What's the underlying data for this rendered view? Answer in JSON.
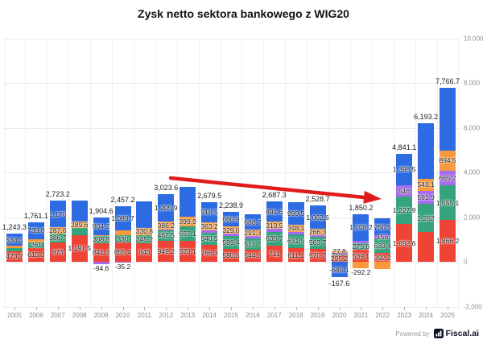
{
  "title": "Zysk netto sektora bankowego z WIG20",
  "footer": {
    "powered_by": "Powered by",
    "brand": "Fiscal.ai"
  },
  "colors": {
    "blue": "#2d6be3",
    "orange": "#f8993d",
    "purple": "#a769f0",
    "green": "#35a47c",
    "red": "#ee4335",
    "arrow": "#e01b1b",
    "icon_bg": "#0c1222"
  },
  "chart_data": {
    "type": "bar",
    "stacked": true,
    "title": "Zysk netto sektora bankowego z WIG20",
    "xlabel": "",
    "ylabel": "",
    "ylim": [
      -2000,
      10000
    ],
    "grid": true,
    "legend": "none",
    "unlabeled_segments_estimated_from_pixels": true,
    "y_axis": {
      "values": [
        10000,
        8000,
        6000,
        4000,
        2000,
        0,
        -2000
      ],
      "labels": [
        "10,000",
        "8,000",
        "6,000",
        "4,000",
        "2,000",
        "0",
        "-2,000"
      ]
    },
    "categories": [
      "2005",
      "2006",
      "2007",
      "2008",
      "2009",
      "2010",
      "2011",
      "2012",
      "2013",
      "2014",
      "2015",
      "2016",
      "2017",
      "2018",
      "2019",
      "2020",
      "2021",
      "2022",
      "2023",
      "2024",
      "2025"
    ],
    "series_order_top_to_bottom": [
      "blue",
      "orange",
      "purple",
      "green",
      "red"
    ],
    "annotation": {
      "type": "arrow",
      "from": "above 2013 bar",
      "to": "top of 2022 bar"
    },
    "bars": [
      {
        "year": "2005",
        "total_label": "1,243.3",
        "segments": [
          {
            "c": "blue",
            "v": 534.4,
            "label": "534.4"
          },
          {
            "c": "orange",
            "v": 90
          },
          {
            "c": "green",
            "v": 145.2
          },
          {
            "c": "red",
            "v": 473.7,
            "label": "473.7"
          }
        ]
      },
      {
        "year": "2006",
        "total_label": "1,761.1",
        "segments": [
          {
            "c": "blue",
            "v": 739.8,
            "label": "739.8"
          },
          {
            "c": "orange",
            "v": 145
          },
          {
            "c": "green",
            "v": 261,
            "label": "261"
          },
          {
            "c": "red",
            "v": 615.3,
            "label": "615.3"
          }
        ]
      },
      {
        "year": "2007",
        "total_label": "2,723.2",
        "segments": [
          {
            "c": "blue",
            "v": 1176,
            "label": "1,176"
          },
          {
            "c": "orange",
            "v": 287.6,
            "label": "287.6"
          },
          {
            "c": "green",
            "v": 386.7,
            "label": "386.7"
          },
          {
            "c": "red",
            "v": 873,
            "label": "873"
          }
        ]
      },
      {
        "year": "2008",
        "segments": [
          {
            "c": "blue",
            "v": 950
          },
          {
            "c": "orange",
            "v": 289.6,
            "label": "289.6"
          },
          {
            "c": "green",
            "v": 310
          },
          {
            "c": "red",
            "v": 1191.5,
            "label": "1,191.5"
          }
        ]
      },
      {
        "year": "2009",
        "total_label": "1,904.6",
        "segments": [
          {
            "c": "blue",
            "v": 804.2,
            "label": "804.2"
          },
          {
            "c": "orange",
            "v": 44.9
          },
          {
            "c": "green",
            "v": 308.8,
            "label": "308.8"
          },
          {
            "c": "red",
            "v": 841.3,
            "label": "841.3"
          },
          {
            "c": "purple",
            "v": -94.6,
            "label": "-94.6"
          }
        ]
      },
      {
        "year": "2010",
        "total_label": "2,457.2",
        "segments": [
          {
            "c": "blue",
            "v": 1089.7,
            "label": "1,089.7"
          },
          {
            "c": "orange",
            "v": 217.3
          },
          {
            "c": "green",
            "v": 330,
            "label": "330"
          },
          {
            "c": "red",
            "v": 855.4,
            "label": "855.4"
          },
          {
            "c": "purple",
            "v": -35.2,
            "label": "-35.2"
          }
        ]
      },
      {
        "year": "2011",
        "segments": [
          {
            "c": "blue",
            "v": 1180
          },
          {
            "c": "orange",
            "v": 330.8,
            "label": "330.8"
          },
          {
            "c": "green",
            "v": 345.2,
            "label": "345.2"
          },
          {
            "c": "red",
            "v": 845,
            "label": "845"
          }
        ]
      },
      {
        "year": "2012",
        "total_label": "3,023.6",
        "segments": [
          {
            "c": "blue",
            "v": 1205.9,
            "label": "1,205.9"
          },
          {
            "c": "orange",
            "v": 386.2,
            "label": "386.2"
          },
          {
            "c": "purple",
            "v": 19.8
          },
          {
            "c": "green",
            "v": 462.5,
            "label": "462.5"
          },
          {
            "c": "red",
            "v": 949.2,
            "label": "949.2"
          }
        ]
      },
      {
        "year": "2013",
        "segments": [
          {
            "c": "blue",
            "v": 1345
          },
          {
            "c": "orange",
            "v": 399.9,
            "label": "399.9"
          },
          {
            "c": "purple",
            "v": 20
          },
          {
            "c": "green",
            "v": 657.1,
            "label": "657.1"
          },
          {
            "c": "red",
            "v": 923.1,
            "label": "923.1"
          }
        ]
      },
      {
        "year": "2014",
        "total_label": "2,679.5",
        "segments": [
          {
            "c": "blue",
            "v": 918.5,
            "label": "918.5"
          },
          {
            "c": "orange",
            "v": 363.2,
            "label": "363.2"
          },
          {
            "c": "purple",
            "v": 91
          },
          {
            "c": "green",
            "v": 540.5,
            "label": "540.5"
          },
          {
            "c": "red",
            "v": 766.3,
            "label": "766.3"
          }
        ]
      },
      {
        "year": "2015",
        "total_label": "2,238.9",
        "segments": [
          {
            "c": "blue",
            "v": 660.9,
            "label": "660.9"
          },
          {
            "c": "orange",
            "v": 329.6,
            "label": "329.6"
          },
          {
            "c": "purple",
            "v": 78.4
          },
          {
            "c": "green",
            "v": 589.4,
            "label": "589.4"
          },
          {
            "c": "red",
            "v": 580.6,
            "label": "580.6"
          }
        ]
      },
      {
        "year": "2016",
        "segments": [
          {
            "c": "blue",
            "v": 686.7,
            "label": "686.7"
          },
          {
            "c": "orange",
            "v": 291.3,
            "label": "291.3"
          },
          {
            "c": "purple",
            "v": 75
          },
          {
            "c": "green",
            "v": 517.7,
            "label": "517.7"
          },
          {
            "c": "red",
            "v": 544.6,
            "label": "544.6"
          }
        ]
      },
      {
        "year": "2017",
        "total_label": "2,687.3",
        "segments": [
          {
            "c": "blue",
            "v": 891.6,
            "label": "891.6"
          },
          {
            "c": "orange",
            "v": 313.5,
            "label": "313.5"
          },
          {
            "c": "purple",
            "v": 135.5
          },
          {
            "c": "green",
            "v": 635.7,
            "label": "635.7"
          },
          {
            "c": "red",
            "v": 711,
            "label": "711"
          }
        ]
      },
      {
        "year": "2018",
        "segments": [
          {
            "c": "blue",
            "v": 999.5,
            "label": "999.5"
          },
          {
            "c": "orange",
            "v": 348.1,
            "label": "348.1"
          },
          {
            "c": "purple",
            "v": 80
          },
          {
            "c": "green",
            "v": 631.5,
            "label": "631.5"
          },
          {
            "c": "red",
            "v": 611.1,
            "label": "611.1"
          }
        ]
      },
      {
        "year": "2019",
        "total_label": "2,528.7",
        "segments": [
          {
            "c": "blue",
            "v": 1062.6,
            "label": "1,062.6"
          },
          {
            "c": "orange",
            "v": 266.3,
            "label": "266.3"
          },
          {
            "c": "purple",
            "v": 65.4
          },
          {
            "c": "green",
            "v": 563.7,
            "label": "563.7"
          },
          {
            "c": "red",
            "v": 570.7,
            "label": "570.7"
          }
        ]
      },
      {
        "year": "2020",
        "total_label": "-167.6",
        "segments": [
          {
            "c": "orange",
            "v": 130
          },
          {
            "c": "purple",
            "v": 64.5
          },
          {
            "c": "green",
            "v": 27.8,
            "label": "27.8"
          },
          {
            "c": "red",
            "v": 295.2,
            "label": "295.2"
          },
          {
            "c": "blue",
            "v": -685.1,
            "label": "-685.1"
          }
        ]
      },
      {
        "year": "2021",
        "total_label": "1,850.2",
        "segments": [
          {
            "c": "blue",
            "v": 1208.2,
            "label": "1,208.2"
          },
          {
            "c": "purple",
            "v": 119.5
          },
          {
            "c": "green",
            "v": 275.6,
            "label": "275.6"
          },
          {
            "c": "red",
            "v": 539.1,
            "label": "539.1"
          },
          {
            "c": "orange",
            "v": -292.2,
            "label": "-292.2"
          }
        ]
      },
      {
        "year": "2022",
        "segments": [
          {
            "c": "blue",
            "v": 756.5,
            "label": "756.5"
          },
          {
            "c": "purple",
            "v": 156,
            "label": "156"
          },
          {
            "c": "green",
            "v": 639.4,
            "label": "639.4"
          },
          {
            "c": "red",
            "v": 392.2,
            "label": "392.2"
          },
          {
            "c": "orange",
            "v": -340
          }
        ]
      },
      {
        "year": "2023",
        "total_label": "4,841.1",
        "segments": [
          {
            "c": "blue",
            "v": 1398.5,
            "label": "1,398.5"
          },
          {
            "c": "purple",
            "v": 516,
            "label": "516"
          },
          {
            "c": "green",
            "v": 1227.9,
            "label": "1,227.9"
          },
          {
            "c": "red",
            "v": 1692.6,
            "label": "1,692.6"
          }
        ]
      },
      {
        "year": "2024",
        "total_label": "6,193.2",
        "segments": [
          {
            "c": "blue",
            "v": 2466
          },
          {
            "c": "orange",
            "v": 543.1,
            "label": "543.1"
          },
          {
            "c": "purple",
            "v": 591.9,
            "label": "591.9"
          },
          {
            "c": "green",
            "v": 1262,
            "label": "1,262"
          },
          {
            "c": "red",
            "v": 1330
          }
        ]
      },
      {
        "year": "2025",
        "total_label": "7,766.7",
        "segments": [
          {
            "c": "blue",
            "v": 2785.7
          },
          {
            "c": "orange",
            "v": 894.5,
            "label": "894.5"
          },
          {
            "c": "purple",
            "v": 665.2,
            "label": "665.2"
          },
          {
            "c": "green",
            "v": 1555.1,
            "label": "1,555.1"
          },
          {
            "c": "red",
            "v": 1866.2,
            "label": "1,866.2"
          }
        ]
      }
    ]
  }
}
